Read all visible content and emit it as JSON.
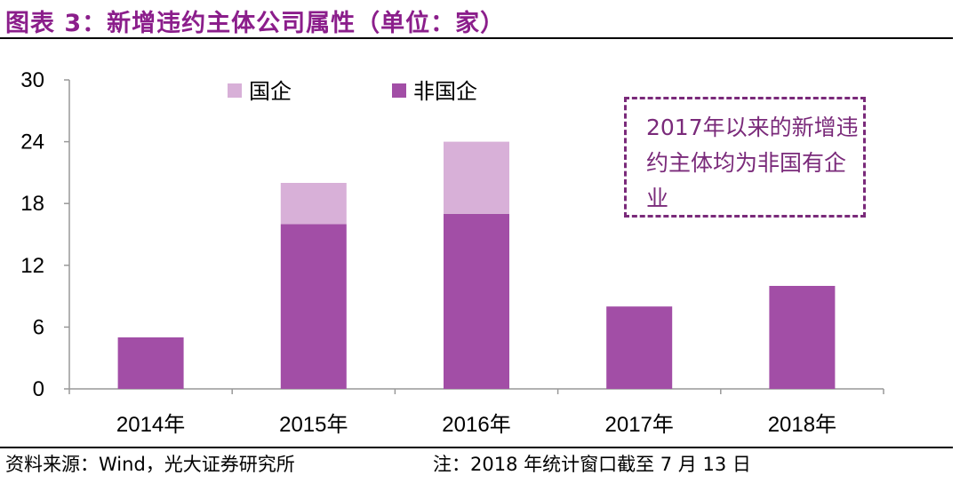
{
  "title": "图表 3：新增违约主体公司属性（单位：家）",
  "source": "资料来源：Wind，光大证券研究所",
  "note": "注：2018 年统计窗口截至 7 月 13 日",
  "callout": "2017年以来的新增违约主体均为非国有企业",
  "colors": {
    "state_owned": "#D8B0D8",
    "non_state_owned": "#A24EA6",
    "accent": "#8B1E8B"
  },
  "chart_data": {
    "type": "bar",
    "stacked": true,
    "categories": [
      "2014年",
      "2015年",
      "2016年",
      "2017年",
      "2018年"
    ],
    "series": [
      {
        "name": "非国企",
        "values": [
          5,
          16,
          17,
          8,
          10
        ],
        "color": "#A24EA6"
      },
      {
        "name": "国企",
        "values": [
          0,
          4,
          7,
          0,
          0
        ],
        "color": "#D8B0D8"
      }
    ],
    "yticks": [
      0,
      6,
      12,
      18,
      24,
      30
    ],
    "ylim": [
      0,
      30
    ],
    "grid": false,
    "legend": [
      "国企",
      "非国企"
    ],
    "legend_position": "top"
  }
}
